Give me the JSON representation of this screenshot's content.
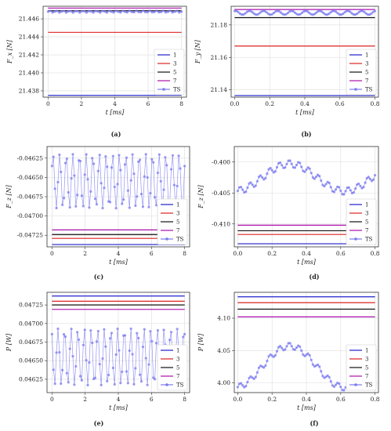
{
  "panel_captions": [
    "(a)",
    "(b)",
    "(c)",
    "(d)",
    "(e)",
    "(f)"
  ],
  "colors": {
    "1": "#1f1fcc",
    "3": "#dd2222",
    "5": "#111111",
    "7": "#aa11aa",
    "TS": "#7b7bf0"
  },
  "chart_data": [
    {
      "type": "line",
      "caption": "(a)",
      "xlabel": "t [ms]",
      "ylabel": "F_x [N]",
      "xlim": [
        -0.3,
        8.3
      ],
      "ylim": [
        21.4373,
        21.4474
      ],
      "xticks": [
        0,
        2,
        4,
        6,
        8
      ],
      "xtick_labels": [
        "0",
        "2",
        "4",
        "6",
        "8"
      ],
      "yticks": [
        21.438,
        21.44,
        21.442,
        21.444,
        21.446
      ],
      "ytick_labels": [
        "21.438",
        "21.440",
        "21.442",
        "21.444",
        "21.446"
      ],
      "legend": "bottom-right",
      "series": [
        {
          "name": "1",
          "x": [
            0,
            8
          ],
          "y": [
            21.4375,
            21.4375
          ]
        },
        {
          "name": "3",
          "x": [
            0,
            8
          ],
          "y": [
            21.4445,
            21.4445
          ]
        },
        {
          "name": "5",
          "x": [
            0,
            8
          ],
          "y": [
            21.4469,
            21.4469
          ]
        },
        {
          "name": "7",
          "x": [
            0,
            8
          ],
          "y": [
            21.4472,
            21.4472
          ]
        },
        {
          "name": "TS",
          "x_start": 0,
          "x_end": 8,
          "n": 60,
          "mean": 21.4468,
          "amp": 0.0001,
          "cycles": 20,
          "trend": 0,
          "phase": 0
        }
      ]
    },
    {
      "type": "line",
      "caption": "(b)",
      "xlabel": "t [ms]",
      "ylabel": "F_y [N]",
      "xlim": [
        -0.02,
        0.82
      ],
      "ylim": [
        21.1355,
        21.1915
      ],
      "xticks": [
        0,
        0.2,
        0.4,
        0.6,
        0.8
      ],
      "xtick_labels": [
        "0.0",
        "0.2",
        "0.4",
        "0.6",
        "0.8"
      ],
      "yticks": [
        21.14,
        21.16,
        21.18
      ],
      "ytick_labels": [
        "21.14",
        "21.16",
        "21.18"
      ],
      "legend": "bottom-right",
      "series": [
        {
          "name": "1",
          "x": [
            0,
            0.8
          ],
          "y": [
            21.1365,
            21.1365
          ]
        },
        {
          "name": "3",
          "x": [
            0,
            0.8
          ],
          "y": [
            21.167,
            21.167
          ]
        },
        {
          "name": "5",
          "x": [
            0,
            0.8
          ],
          "y": [
            21.1845,
            21.1845
          ]
        },
        {
          "name": "7",
          "x": [
            0,
            0.8
          ],
          "y": [
            21.1895,
            21.1895
          ]
        },
        {
          "name": "TS",
          "x_start": 0,
          "x_end": 0.8,
          "n": 80,
          "mean": 21.1875,
          "amp": 0.0012,
          "cycles": 10,
          "trend": 0,
          "phase": 1.2
        }
      ]
    },
    {
      "type": "line",
      "caption": "(c)",
      "xlabel": "t [ms]",
      "ylabel": "F_z [N]",
      "xlim": [
        -0.3,
        8.3
      ],
      "ylim": [
        -0.0474,
        -0.0461
      ],
      "xticks": [
        0,
        2,
        4,
        6,
        8
      ],
      "xtick_labels": [
        "0",
        "2",
        "4",
        "6",
        "8"
      ],
      "yticks": [
        -0.04625,
        -0.0465,
        -0.04675,
        -0.047,
        -0.04725
      ],
      "ytick_labels": [
        "-0.04625",
        "-0.04650",
        "-0.04675",
        "-0.04700",
        "-0.04725"
      ],
      "legend": "bottom-right",
      "series": [
        {
          "name": "1",
          "x": [
            0,
            8
          ],
          "y": [
            -0.04737,
            -0.04737
          ]
        },
        {
          "name": "3",
          "x": [
            0,
            8
          ],
          "y": [
            -0.04729,
            -0.04729
          ]
        },
        {
          "name": "5",
          "x": [
            0,
            8
          ],
          "y": [
            -0.04724,
            -0.04724
          ]
        },
        {
          "name": "7",
          "x": [
            0,
            8
          ],
          "y": [
            -0.04718,
            -0.04718
          ]
        },
        {
          "name": "TS",
          "x_start": 0,
          "x_end": 8,
          "n": 90,
          "mean": -0.04655,
          "amp": 0.00035,
          "cycles": 20,
          "trend": 0,
          "phase": 0.6
        }
      ]
    },
    {
      "type": "line",
      "caption": "(d)",
      "xlabel": "t [ms]",
      "ylabel": "F_z [N]",
      "xlim": [
        -0.02,
        0.82
      ],
      "ylim": [
        -0.4137,
        -0.3975
      ],
      "xticks": [
        0,
        0.2,
        0.4,
        0.6,
        0.8
      ],
      "xtick_labels": [
        "0.0",
        "0.2",
        "0.4",
        "0.6",
        "0.8"
      ],
      "yticks": [
        -0.4,
        -0.405,
        -0.41
      ],
      "ytick_labels": [
        "-0.400",
        "-0.405",
        "-0.410"
      ],
      "legend": "bottom-right",
      "series": [
        {
          "name": "1",
          "x": [
            0,
            0.8
          ],
          "y": [
            -0.4132,
            -0.4132
          ]
        },
        {
          "name": "3",
          "x": [
            0,
            0.8
          ],
          "y": [
            -0.4117,
            -0.4117
          ]
        },
        {
          "name": "5",
          "x": [
            0,
            0.8
          ],
          "y": [
            -0.4111,
            -0.4111
          ]
        },
        {
          "name": "7",
          "x": [
            0,
            0.8
          ],
          "y": [
            -0.4102,
            -0.4102
          ]
        },
        {
          "name": "TS",
          "x_start": 0,
          "x_end": 0.8,
          "n": 85,
          "mean": -0.4025,
          "amp": 0.0006,
          "cycles": 14,
          "trend": 0,
          "phase": 0,
          "envelope": {
            "base": -0.4025,
            "swing": 0.0022,
            "period": 0.8,
            "phase": 0.0
          }
        }
      ]
    },
    {
      "type": "line",
      "caption": "(e)",
      "xlabel": "t [ms]",
      "ylabel": "P [W]",
      "xlim": [
        -0.3,
        8.3
      ],
      "ylim": [
        0.04607,
        0.04742
      ],
      "xticks": [
        0,
        2,
        4,
        6,
        8
      ],
      "xtick_labels": [
        "0",
        "2",
        "4",
        "6",
        "8"
      ],
      "yticks": [
        0.04625,
        0.0465,
        0.04675,
        0.047,
        0.04725
      ],
      "ytick_labels": [
        "0.04625",
        "0.04650",
        "0.04675",
        "0.04700",
        "0.04725"
      ],
      "legend": "bottom-right",
      "series": [
        {
          "name": "1",
          "x": [
            0,
            8
          ],
          "y": [
            0.04737,
            0.04737
          ]
        },
        {
          "name": "3",
          "x": [
            0,
            8
          ],
          "y": [
            0.0473,
            0.0473
          ]
        },
        {
          "name": "5",
          "x": [
            0,
            8
          ],
          "y": [
            0.04725,
            0.04725
          ]
        },
        {
          "name": "7",
          "x": [
            0,
            8
          ],
          "y": [
            0.04719,
            0.04719
          ]
        },
        {
          "name": "TS",
          "x_start": 0,
          "x_end": 8,
          "n": 90,
          "mean": 0.04655,
          "amp": 0.00038,
          "cycles": 20,
          "trend": 0,
          "phase": 2.2
        }
      ]
    },
    {
      "type": "line",
      "caption": "(f)",
      "xlabel": "t [ms]",
      "ylabel": "P [W]",
      "xlim": [
        -0.02,
        0.82
      ],
      "ylim": [
        3.985,
        4.14
      ],
      "xticks": [
        0,
        0.2,
        0.4,
        0.6,
        0.8
      ],
      "xtick_labels": [
        "0.0",
        "0.2",
        "0.4",
        "0.6",
        "0.8"
      ],
      "yticks": [
        4.0,
        4.05,
        4.1
      ],
      "ytick_labels": [
        "4.00",
        "4.05",
        "4.10"
      ],
      "legend": "bottom-right",
      "series": [
        {
          "name": "1",
          "x": [
            0,
            0.8
          ],
          "y": [
            4.133,
            4.133
          ]
        },
        {
          "name": "3",
          "x": [
            0,
            0.8
          ],
          "y": [
            4.124,
            4.124
          ]
        },
        {
          "name": "5",
          "x": [
            0,
            0.8
          ],
          "y": [
            4.114,
            4.114
          ]
        },
        {
          "name": "7",
          "x": [
            0,
            0.8
          ],
          "y": [
            4.102,
            4.102
          ]
        },
        {
          "name": "TS",
          "x_start": 0,
          "x_end": 0.8,
          "n": 85,
          "mean": 4.03,
          "amp": 0.005,
          "cycles": 14,
          "trend": 0,
          "phase": 0,
          "envelope": {
            "base": 4.025,
            "swing": 0.032,
            "period": 0.8,
            "phase": 0.0
          }
        }
      ]
    }
  ]
}
